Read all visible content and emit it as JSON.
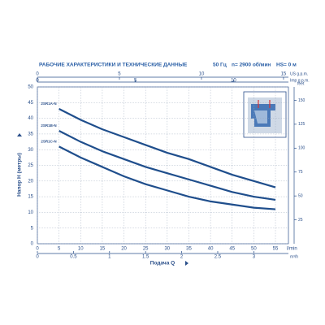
{
  "header": {
    "title": "РАБОЧИЕ ХАРАКТЕРИСТИКИ И ТЕХНИЧЕСКИЕ ДАННЫЕ",
    "frequency": "50 Гц",
    "speed": "n= 2900 об/мин",
    "suction": "HS= 0 м"
  },
  "chart_data": {
    "type": "line",
    "x_label": "Подача Q",
    "y_label": "Напор H (метры)",
    "x_unit": "l/min",
    "x": [
      5,
      10,
      15,
      20,
      25,
      30,
      35,
      40,
      45,
      50,
      55
    ],
    "series": [
      {
        "name": "2SR1A-N",
        "color": "#1f4e8c",
        "values": [
          43,
          39.5,
          36.5,
          34,
          31.5,
          29,
          27,
          24.5,
          22,
          20,
          18
        ]
      },
      {
        "name": "2SR1B-N",
        "color": "#1f4e8c",
        "values": [
          36,
          32.5,
          29.5,
          27,
          24.5,
          22.5,
          20.5,
          18.5,
          16.5,
          15,
          14
        ]
      },
      {
        "name": "2SR1C-N",
        "color": "#1f4e8c",
        "values": [
          31,
          27.5,
          24.5,
          21.5,
          19,
          17,
          15,
          13.5,
          12.5,
          11.5,
          11
        ]
      }
    ],
    "xlim": [
      0,
      58
    ],
    "xticks": [
      0,
      5,
      10,
      15,
      20,
      25,
      30,
      35,
      40,
      45,
      50,
      55
    ],
    "ylim": [
      0,
      50
    ],
    "yticks": [
      0,
      5,
      10,
      15,
      20,
      25,
      30,
      35,
      40,
      45,
      50
    ],
    "grid": true,
    "us_gpm_axis": {
      "label": "US g.p.m.",
      "lim": [
        0,
        15.3
      ],
      "ticks": [
        0,
        5,
        10,
        15
      ]
    },
    "imp_gpm_axis": {
      "label": "Imp g.p.m.",
      "lim": [
        0,
        12.8
      ],
      "ticks": [
        0,
        5,
        10
      ]
    },
    "m3h_axis": {
      "label": "m³/h",
      "lim": [
        0,
        3.48
      ],
      "ticks": [
        0,
        0.5,
        1,
        1.5,
        2,
        2.5,
        3
      ]
    },
    "feet_axis": {
      "label": "feet",
      "lim": [
        0,
        164
      ],
      "ticks": [
        25,
        50,
        75,
        100,
        125,
        150
      ]
    }
  }
}
